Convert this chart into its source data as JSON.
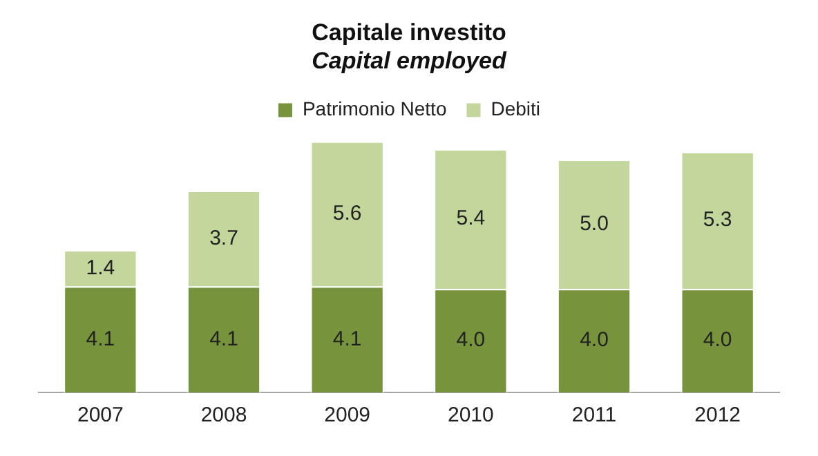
{
  "chart_data": {
    "type": "bar",
    "title": "Capitale investito",
    "subtitle": "Capital employed",
    "categories": [
      "2007",
      "2008",
      "2009",
      "2010",
      "2011",
      "2012"
    ],
    "stacked": true,
    "series": [
      {
        "name": "Patrimonio Netto",
        "color": "#77933c",
        "values": [
          4.1,
          4.1,
          4.1,
          4.0,
          4.0,
          4.0
        ],
        "value_labels": [
          "4.1",
          "4.1",
          "4.1",
          "4.0",
          "4.0",
          "4.0"
        ]
      },
      {
        "name": "Debiti",
        "color": "#c3d69b",
        "values": [
          1.4,
          3.7,
          5.6,
          5.4,
          5.0,
          5.3
        ],
        "value_labels": [
          "1.4",
          "3.7",
          "5.6",
          "5.4",
          "5.0",
          "5.3"
        ]
      }
    ],
    "legend": "top",
    "grid": false,
    "tick_labels": "x"
  }
}
